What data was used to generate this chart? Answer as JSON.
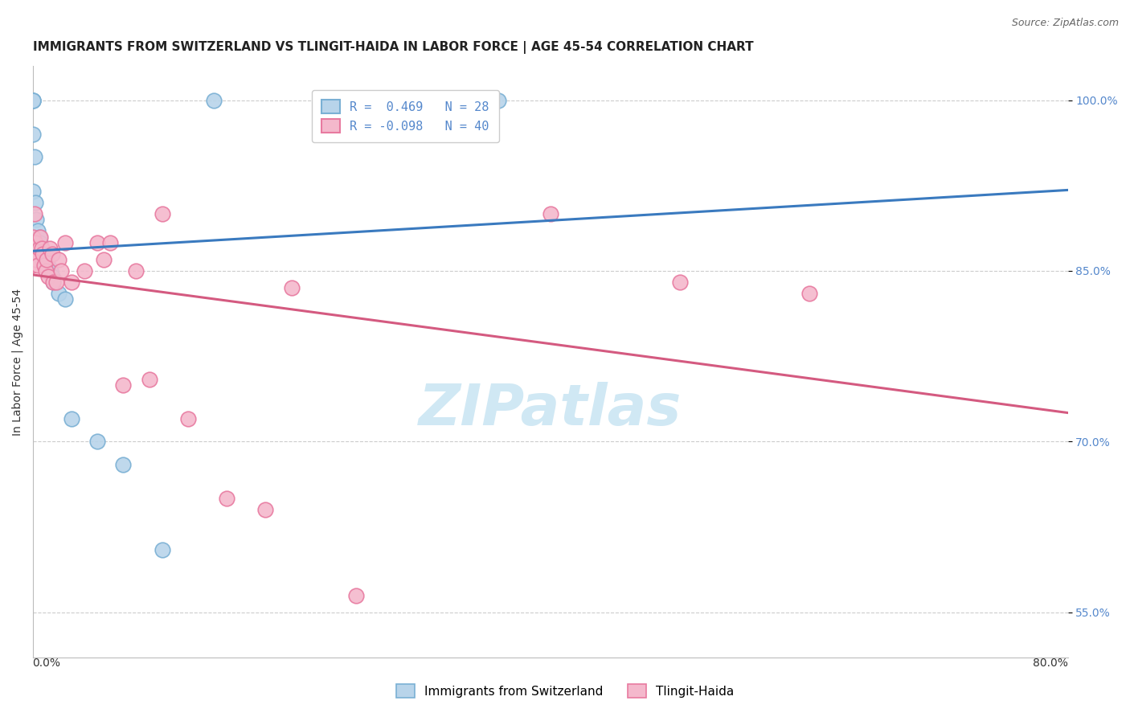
{
  "title": "IMMIGRANTS FROM SWITZERLAND VS TLINGIT-HAIDA IN LABOR FORCE | AGE 45-54 CORRELATION CHART",
  "source": "Source: ZipAtlas.com",
  "ylabel": "In Labor Force | Age 45-54",
  "xlim": [
    0.0,
    80.0
  ],
  "ylim": [
    51.0,
    103.0
  ],
  "yticks": [
    55.0,
    70.0,
    85.0,
    100.0
  ],
  "ytick_labels": [
    "55.0%",
    "70.0%",
    "85.0%",
    "100.0%"
  ],
  "series_blue": {
    "label": "Immigrants from Switzerland",
    "R": 0.469,
    "N": 28,
    "color": "#b8d4ea",
    "edge_color": "#7ab0d4",
    "trend_color": "#3a7abf",
    "x": [
      0.0,
      0.0,
      0.0,
      0.0,
      0.0,
      0.15,
      0.2,
      0.3,
      0.4,
      0.5,
      0.6,
      0.7,
      0.8,
      0.9,
      1.0,
      1.1,
      1.2,
      1.4,
      1.5,
      1.6,
      2.0,
      2.5,
      3.0,
      5.0,
      7.0,
      10.0,
      14.0,
      36.0
    ],
    "y": [
      100.0,
      100.0,
      100.0,
      97.0,
      92.0,
      95.0,
      91.0,
      89.5,
      88.5,
      88.0,
      87.5,
      87.0,
      86.5,
      86.0,
      86.5,
      85.5,
      85.5,
      85.0,
      84.5,
      84.0,
      83.0,
      82.5,
      72.0,
      70.0,
      68.0,
      60.5,
      100.0,
      100.0
    ]
  },
  "series_pink": {
    "label": "Tlingit-Haida",
    "R": -0.098,
    "N": 40,
    "color": "#f4b8cc",
    "edge_color": "#e87aa0",
    "trend_color": "#d45a80",
    "x": [
      0.0,
      0.0,
      0.05,
      0.1,
      0.15,
      0.2,
      0.3,
      0.4,
      0.5,
      0.6,
      0.7,
      0.8,
      0.9,
      1.0,
      1.1,
      1.2,
      1.3,
      1.5,
      1.6,
      1.8,
      2.0,
      2.2,
      2.5,
      3.0,
      4.0,
      5.0,
      5.5,
      6.0,
      7.0,
      8.0,
      9.0,
      10.0,
      12.0,
      15.0,
      18.0,
      20.0,
      25.0,
      40.0,
      50.0,
      60.0
    ],
    "y": [
      86.0,
      85.5,
      88.0,
      86.5,
      90.0,
      87.5,
      86.0,
      85.5,
      87.0,
      88.0,
      87.0,
      86.5,
      85.5,
      85.0,
      86.0,
      84.5,
      87.0,
      86.5,
      84.0,
      84.0,
      86.0,
      85.0,
      87.5,
      84.0,
      85.0,
      87.5,
      86.0,
      87.5,
      75.0,
      85.0,
      75.5,
      90.0,
      72.0,
      65.0,
      64.0,
      83.5,
      56.5,
      90.0,
      84.0,
      83.0
    ]
  },
  "background_color": "#ffffff",
  "grid_color": "#cccccc",
  "title_fontsize": 11,
  "source_fontsize": 9,
  "axis_label_fontsize": 10,
  "tick_fontsize": 10,
  "legend_fontsize": 11,
  "watermark_text": "ZIPatlas",
  "watermark_color": "#d0e8f4",
  "watermark_fontsize": 52
}
